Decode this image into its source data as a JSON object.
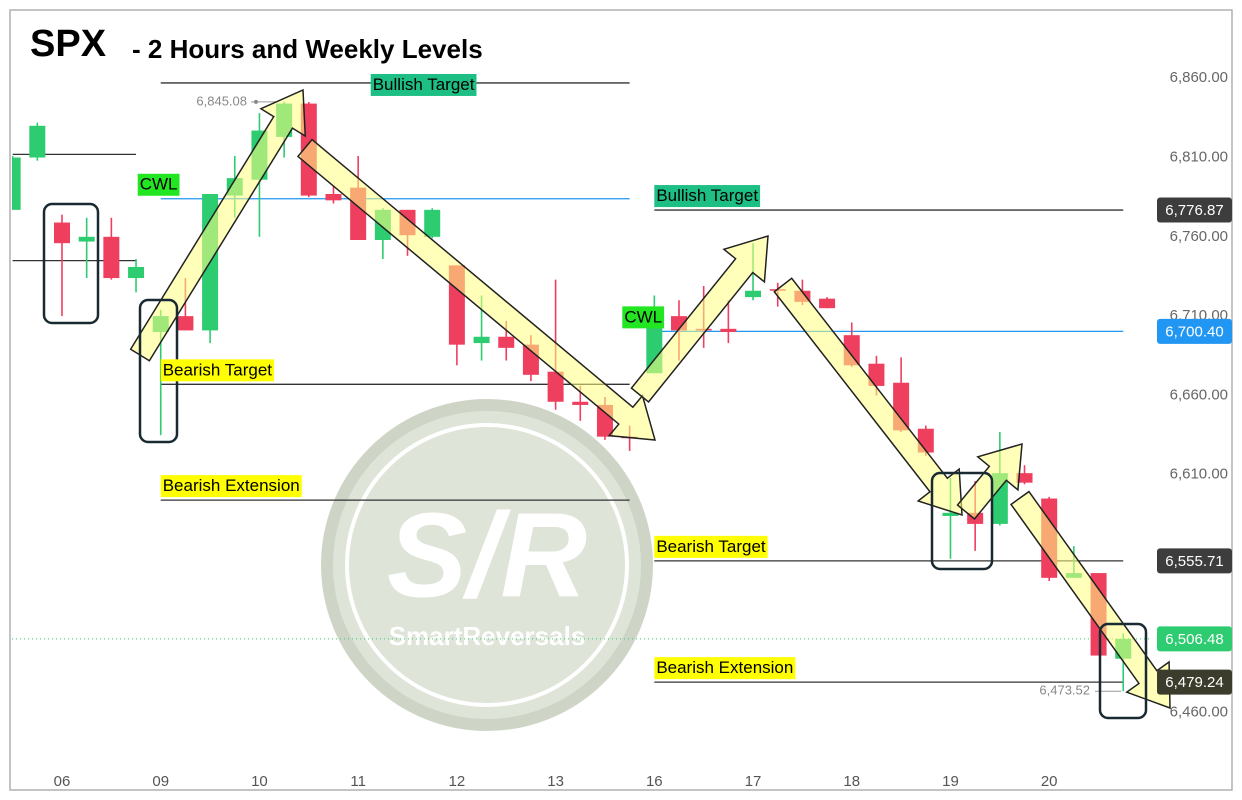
{
  "chart_data": {
    "type": "candlestick",
    "symbol": "SPX",
    "title": "- 2 Hours and Weekly Levels",
    "categories": [
      null,
      null,
      "06",
      null,
      null,
      null,
      "09",
      null,
      null,
      null,
      "10",
      null,
      null,
      null,
      "11",
      null,
      null,
      null,
      "12",
      null,
      null,
      null,
      "13",
      null,
      null,
      null,
      "16",
      null,
      null,
      null,
      "17",
      null,
      null,
      null,
      "18",
      null,
      null,
      null,
      "19",
      null,
      null,
      null,
      "20",
      null,
      null,
      null
    ],
    "open": [
      6777,
      6810,
      6769,
      6757,
      6760,
      6734,
      6700,
      6710,
      6701,
      6786,
      6796,
      6823,
      6844,
      6787,
      6791,
      6758,
      6777,
      6760,
      6742,
      6693,
      6697,
      6692,
      6675,
      6656,
      6654,
      6634,
      6674,
      6710,
      6702,
      6702,
      6722,
      6727,
      6726,
      6721,
      6698,
      6680,
      6668,
      6639,
      6584,
      6586,
      6579,
      6611,
      6595,
      6545,
      6548,
      6494
    ],
    "high": [
      6811,
      6832,
      6774,
      6772,
      6772,
      6746,
      6714,
      6734,
      6787,
      6811,
      6838,
      6845.08,
      6845,
      6792,
      6811,
      6778,
      6777,
      6778,
      6742,
      6723,
      6707,
      6698,
      6733,
      6666,
      6659,
      6641,
      6723,
      6720,
      6729,
      6720,
      6756,
      6731,
      6733,
      6722,
      6706,
      6685,
      6684,
      6641,
      6608,
      6606,
      6637,
      6616,
      6596,
      6565,
      6548,
      6510
    ],
    "low": [
      6777,
      6808,
      6710,
      6734,
      6733,
      6725,
      6635,
      6701,
      6693,
      6772,
      6760,
      6810,
      6785,
      6781,
      6758,
      6746,
      6748,
      6759,
      6679,
      6682,
      6682,
      6669,
      6651,
      6644,
      6632,
      6625,
      6674,
      6682,
      6690,
      6693,
      6720,
      6716,
      6717,
      6715,
      6678,
      6660,
      6637,
      6622,
      6557,
      6562,
      6578,
      6604,
      6543,
      6545,
      6496,
      6473.52
    ],
    "close": [
      6810,
      6830,
      6756,
      6760,
      6734,
      6741,
      6710,
      6701,
      6787,
      6797,
      6827,
      6844,
      6786,
      6783,
      6758,
      6777,
      6761,
      6777,
      6692,
      6697,
      6690,
      6673,
      6656,
      6654,
      6634,
      6633,
      6706,
      6701,
      6701,
      6700,
      6726,
      6726,
      6719,
      6715,
      6679,
      6666,
      6638,
      6624,
      6586,
      6579,
      6611,
      6605,
      6545,
      6548,
      6496,
      6506.48
    ],
    "up_color": "#2ecc71",
    "down_color": "#ef3f5f",
    "high_label": "6,845.08",
    "low_label": "6,473.52",
    "last_price_label": "6,506.48",
    "last_price_color": "#2ecc71",
    "ylim": [
      6427,
      6903
    ],
    "yticks": [
      {
        "value": 6860,
        "label": "6,860.00"
      },
      {
        "value": 6810,
        "label": "6,810.00"
      },
      {
        "value": 6760,
        "label": "6,760.00"
      },
      {
        "value": 6710,
        "label": "6,710.00"
      },
      {
        "value": 6660,
        "label": "6,660.00"
      },
      {
        "value": 6610,
        "label": "6,610.00"
      },
      {
        "value": 6460,
        "label": "6,460.00"
      }
    ],
    "weekly_levels": [
      {
        "names": [
          null,
          null
        ],
        "values": [
          6812,
          6745
        ],
        "line_colors": [
          "#333333",
          "#333333"
        ]
      },
      {
        "names": [
          "Bullish Target",
          "CWL",
          "Bearish Target",
          "Bearish Extension"
        ],
        "values": [
          6857,
          6784,
          6667,
          6594
        ],
        "line_colors": [
          "#333333",
          "#2196f3",
          "#333333",
          "#333333"
        ],
        "label_colors": [
          "#1dbf85",
          "#22e622",
          "#ffff00",
          "#ffff00"
        ]
      },
      {
        "names": [
          "Bullish Target",
          "CWL",
          "Bearish Target",
          "Bearish Extension"
        ],
        "values": [
          6776.87,
          6700.4,
          6555.71,
          6479.24
        ],
        "value_labels": [
          "6,776.87",
          "6,700.40",
          "6,555.71",
          "6,479.24"
        ],
        "line_colors": [
          "#333333",
          "#2196f3",
          "#333333",
          "#333333"
        ],
        "label_colors": [
          "#1dbf85",
          "#22e622",
          "#ffff00",
          "#ffff00"
        ],
        "tag_colors": [
          "#3d3d3d",
          "#2196f3",
          "#3d3d3d",
          "#3c3c2c"
        ]
      }
    ],
    "watermark": {
      "logo": "S/R",
      "brand": "SmartReversals"
    }
  }
}
